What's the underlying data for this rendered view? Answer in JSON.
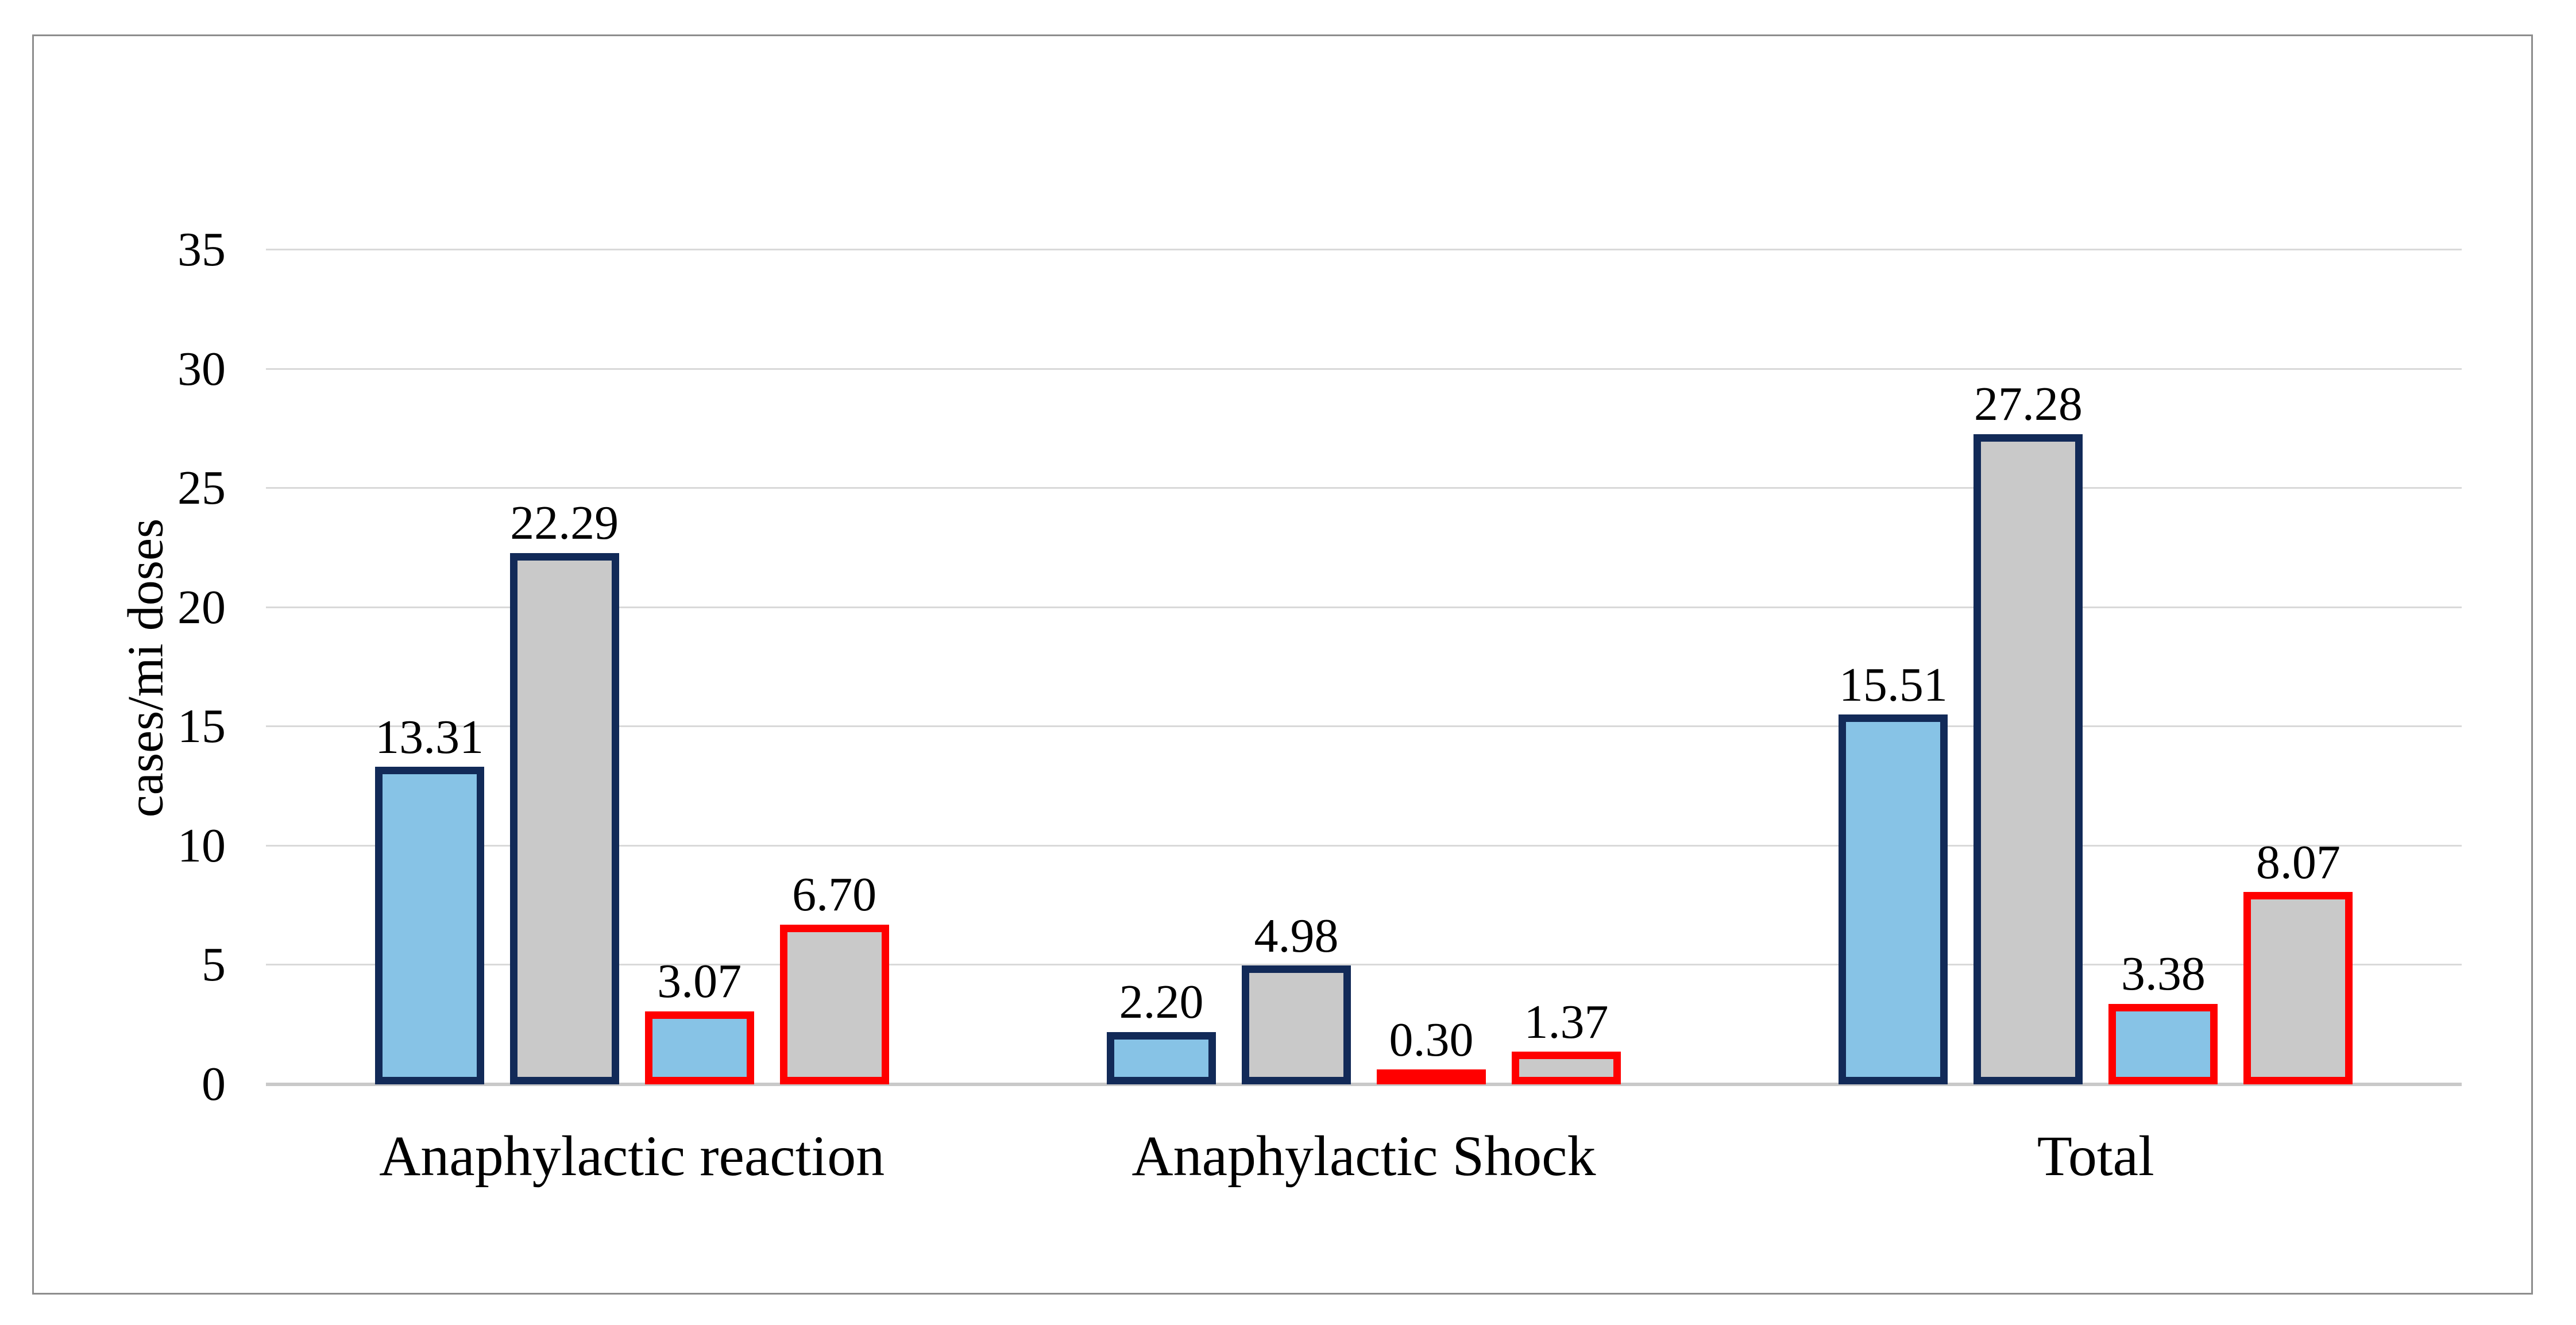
{
  "chart_data": {
    "type": "bar",
    "title": "",
    "xlabel": "",
    "ylabel": "cases/mi doses",
    "ylim": [
      0,
      35
    ],
    "yticks": [
      0,
      5,
      10,
      15,
      20,
      25,
      30,
      35
    ],
    "grid": true,
    "legend_position": "none",
    "categories": [
      "Anaphylactic reaction",
      "Anaphylactic Shock",
      "Total"
    ],
    "series": [
      {
        "name": "blue-navy-border",
        "fill": "#87C3E6",
        "border": "#122A58",
        "values": [
          13.31,
          2.2,
          15.51
        ],
        "labels": [
          "13.31",
          "2.20",
          "15.51"
        ]
      },
      {
        "name": "gray-navy-border",
        "fill": "#C9C9C9",
        "border": "#122A58",
        "values": [
          22.29,
          4.98,
          27.28
        ],
        "labels": [
          "22.29",
          "4.98",
          "27.28"
        ]
      },
      {
        "name": "blue-red-border",
        "fill": "#87C3E6",
        "border": "#FF0000",
        "values": [
          3.07,
          0.3,
          3.38
        ],
        "labels": [
          "3.07",
          "0.30",
          "3.38"
        ]
      },
      {
        "name": "gray-red-border",
        "fill": "#C9C9C9",
        "border": "#FF0000",
        "values": [
          6.7,
          1.37,
          8.07
        ],
        "labels": [
          "6.70",
          "1.37",
          "8.07"
        ]
      }
    ]
  },
  "colors": {
    "background": "#FFFFFF",
    "frame_border": "#8D8D8D",
    "gridline": "#D9D9D9",
    "axis_line": "#C9C9C9",
    "text": "#000000"
  }
}
